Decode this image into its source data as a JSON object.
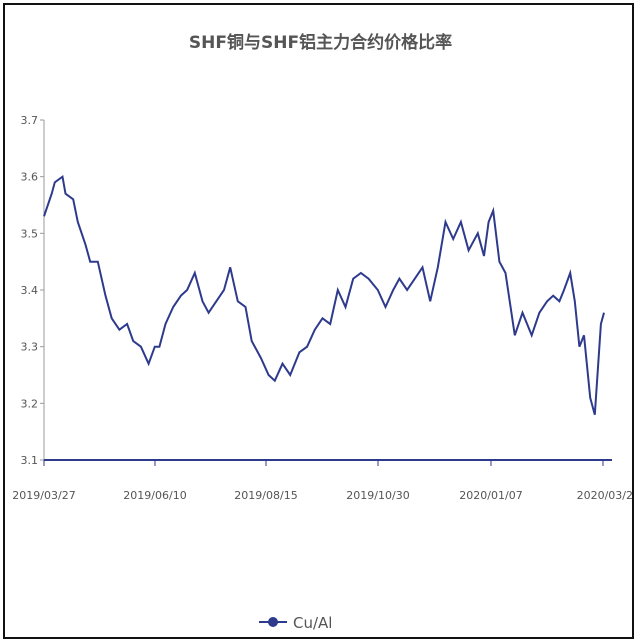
{
  "chart_data": {
    "type": "line",
    "title": "SHF铜与SHF铝主力合约价格比率",
    "xlabel": "",
    "ylabel": "",
    "ylim": [
      3.1,
      3.7
    ],
    "yticks": [
      "3.1",
      "3.2",
      "3.3",
      "3.4",
      "3.5",
      "3.6",
      "3.7"
    ],
    "xticks": [
      "2019/03/27",
      "2019/06/10",
      "2019/08/15",
      "2019/10/30",
      "2020/01/07",
      "2020/03/2"
    ],
    "legend_position": "bottom-center",
    "grid": false,
    "series": [
      {
        "name": "Cu/Al",
        "color": "#2e3a8c",
        "x": [
          "2019/03/27",
          "2019/04/01",
          "2019/04/03",
          "2019/04/08",
          "2019/04/10",
          "2019/04/15",
          "2019/04/18",
          "2019/04/23",
          "2019/04/26",
          "2019/05/01",
          "2019/05/06",
          "2019/05/10",
          "2019/05/15",
          "2019/05/20",
          "2019/05/24",
          "2019/05/29",
          "2019/06/03",
          "2019/06/07",
          "2019/06/10",
          "2019/06/14",
          "2019/06/19",
          "2019/06/24",
          "2019/06/28",
          "2019/07/03",
          "2019/07/08",
          "2019/07/12",
          "2019/07/17",
          "2019/07/22",
          "2019/07/26",
          "2019/07/31",
          "2019/08/05",
          "2019/08/09",
          "2019/08/15",
          "2019/08/20",
          "2019/08/24",
          "2019/08/29",
          "2019/09/03",
          "2019/09/09",
          "2019/09/14",
          "2019/09/19",
          "2019/09/24",
          "2019/09/29",
          "2019/10/04",
          "2019/10/09",
          "2019/10/14",
          "2019/10/19",
          "2019/10/24",
          "2019/10/30",
          "2019/11/04",
          "2019/11/09",
          "2019/11/13",
          "2019/11/18",
          "2019/11/23",
          "2019/11/28",
          "2019/12/03",
          "2019/12/08",
          "2019/12/13",
          "2019/12/18",
          "2019/12/23",
          "2019/12/28",
          "2020/01/03",
          "2020/01/07",
          "2020/01/10",
          "2020/01/13",
          "2020/01/17",
          "2020/01/21",
          "2020/01/27",
          "2020/02/01",
          "2020/02/07",
          "2020/02/12",
          "2020/02/17",
          "2020/02/21",
          "2020/02/25",
          "2020/02/28",
          "2020/03/03",
          "2020/03/06",
          "2020/03/09",
          "2020/03/12",
          "2020/03/16",
          "2020/03/19",
          "2020/03/23",
          "2020/03/25"
        ],
        "values": [
          3.53,
          3.57,
          3.59,
          3.6,
          3.57,
          3.56,
          3.52,
          3.48,
          3.45,
          3.45,
          3.39,
          3.35,
          3.33,
          3.34,
          3.31,
          3.3,
          3.27,
          3.3,
          3.3,
          3.34,
          3.37,
          3.39,
          3.4,
          3.43,
          3.38,
          3.36,
          3.38,
          3.4,
          3.44,
          3.38,
          3.37,
          3.31,
          3.28,
          3.25,
          3.24,
          3.27,
          3.25,
          3.29,
          3.3,
          3.33,
          3.35,
          3.34,
          3.4,
          3.37,
          3.42,
          3.43,
          3.42,
          3.4,
          3.37,
          3.4,
          3.42,
          3.4,
          3.42,
          3.44,
          3.38,
          3.44,
          3.52,
          3.49,
          3.52,
          3.47,
          3.5,
          3.46,
          3.52,
          3.54,
          3.45,
          3.43,
          3.32,
          3.36,
          3.32,
          3.36,
          3.38,
          3.39,
          3.38,
          3.4,
          3.43,
          3.38,
          3.3,
          3.32,
          3.21,
          3.18,
          3.34,
          3.36
        ]
      }
    ]
  }
}
